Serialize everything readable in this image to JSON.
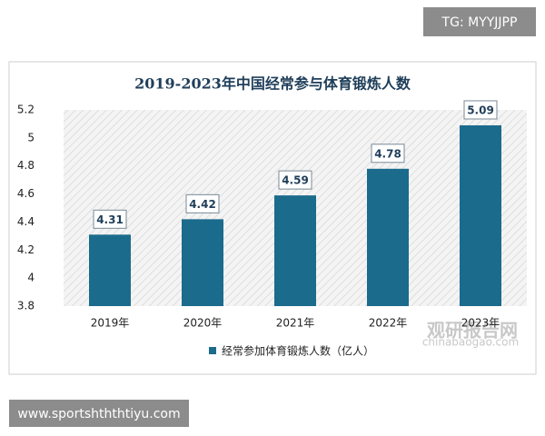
{
  "chart_data": {
    "type": "bar",
    "title": "2019-2023年中国经常参与体育锻炼人数",
    "categories": [
      "2019年",
      "2020年",
      "2021年",
      "2022年",
      "2023年"
    ],
    "series": [
      {
        "name": "经常参加体育锻炼人数（亿人）",
        "color": "#1b6b8c",
        "values": [
          4.31,
          4.42,
          4.59,
          4.78,
          5.09
        ]
      }
    ],
    "ylim": [
      3.8,
      5.2
    ],
    "yticks": [
      3.8,
      4,
      4.2,
      4.4,
      4.6,
      4.8,
      5,
      5.2
    ],
    "grid": false,
    "legend": "bottom"
  },
  "overlay": {
    "tag": "TG: MYYJJPP",
    "site": "www.sportshththtiyu.com",
    "brand": "观研报告网",
    "brand_url": "chinabaogao.com"
  }
}
